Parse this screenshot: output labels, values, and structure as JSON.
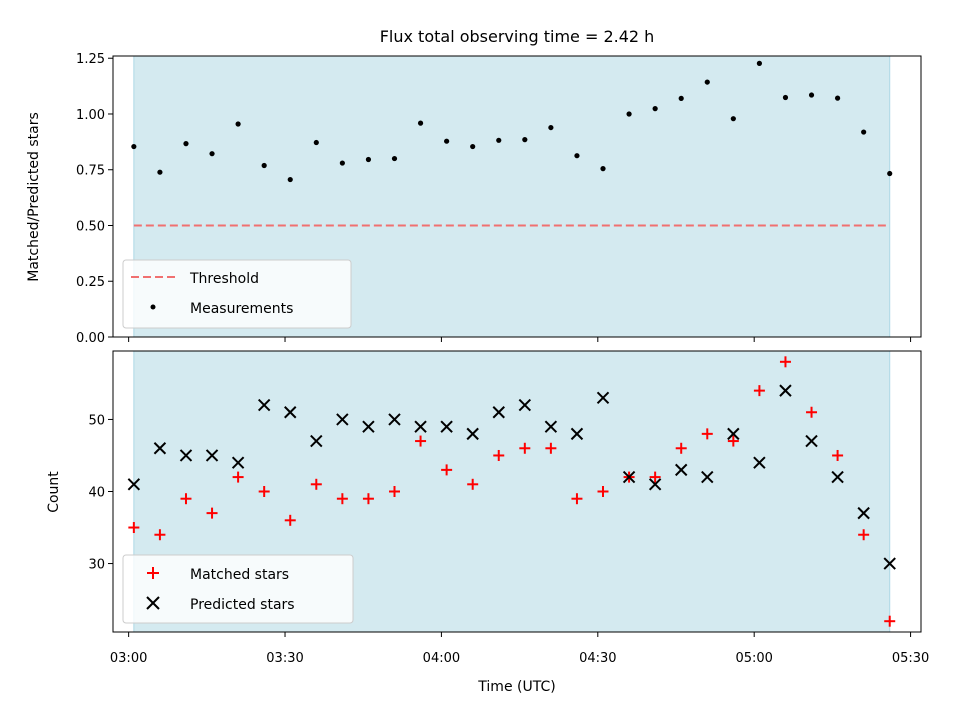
{
  "chart_data": [
    {
      "type": "scatter",
      "title": "Flux total observing time = 2.42 h",
      "xlabel": "",
      "ylabel": "Matched/Predicted stars",
      "ylim": [
        0,
        1.26
      ],
      "yticks": [
        "0.00",
        "0.25",
        "0.50",
        "0.75",
        "1.00",
        "1.25"
      ],
      "ytick_values": [
        0,
        0.25,
        0.5,
        0.75,
        1.0,
        1.25
      ],
      "grid": false,
      "shaded_region": {
        "from": "03:01",
        "to": "05:26",
        "color": "#d4eaf0"
      },
      "threshold": {
        "name": "Threshold",
        "value": 0.5,
        "color": "#f07070"
      },
      "legend": {
        "position": "lower-left",
        "entries": [
          "Threshold",
          "Measurements"
        ]
      },
      "series": [
        {
          "name": "Measurements",
          "marker": "dot",
          "color": "#000000",
          "x": [
            "03:01",
            "03:06",
            "03:11",
            "03:16",
            "03:21",
            "03:26",
            "03:31",
            "03:36",
            "03:41",
            "03:46",
            "03:51",
            "03:56",
            "04:01",
            "04:06",
            "04:11",
            "04:16",
            "04:21",
            "04:26",
            "04:31",
            "04:36",
            "04:41",
            "04:46",
            "04:51",
            "04:56",
            "05:01",
            "05:06",
            "05:11",
            "05:16",
            "05:21",
            "05:26"
          ],
          "y": [
            0.854,
            0.739,
            0.867,
            0.822,
            0.955,
            0.769,
            0.706,
            0.872,
            0.78,
            0.796,
            0.8,
            0.959,
            0.878,
            0.854,
            0.882,
            0.885,
            0.939,
            0.813,
            0.755,
            1.0,
            1.024,
            1.07,
            1.143,
            0.979,
            1.227,
            1.074,
            1.085,
            1.071,
            0.919,
            0.733
          ]
        }
      ]
    },
    {
      "type": "scatter",
      "title": "",
      "xlabel": "Time (UTC)",
      "ylabel": "Count",
      "ylim": [
        20.5,
        59.5
      ],
      "yticks": [
        "30",
        "40",
        "50"
      ],
      "ytick_values": [
        30,
        40,
        50
      ],
      "xlim": [
        "02:57",
        "05:32"
      ],
      "xticks": [
        "03:00",
        "03:30",
        "04:00",
        "04:30",
        "05:00",
        "05:30"
      ],
      "grid": false,
      "shaded_region": {
        "from": "03:01",
        "to": "05:26",
        "color": "#d4eaf0"
      },
      "legend": {
        "position": "lower-left",
        "entries": [
          "Matched stars",
          "Predicted stars"
        ]
      },
      "series": [
        {
          "name": "Matched stars",
          "marker": "plus",
          "color": "#ff0000",
          "x": [
            "03:01",
            "03:06",
            "03:11",
            "03:16",
            "03:21",
            "03:26",
            "03:31",
            "03:36",
            "03:41",
            "03:46",
            "03:51",
            "03:56",
            "04:01",
            "04:06",
            "04:11",
            "04:16",
            "04:21",
            "04:26",
            "04:31",
            "04:36",
            "04:41",
            "04:46",
            "04:51",
            "04:56",
            "05:01",
            "05:06",
            "05:11",
            "05:16",
            "05:21",
            "05:26"
          ],
          "y": [
            35,
            34,
            39,
            37,
            42,
            40,
            36,
            41,
            39,
            39,
            40,
            47,
            43,
            41,
            45,
            46,
            46,
            39,
            40,
            42,
            42,
            46,
            48,
            47,
            54,
            58,
            51,
            45,
            34,
            22
          ]
        },
        {
          "name": "Predicted stars",
          "marker": "x",
          "color": "#000000",
          "x": [
            "03:01",
            "03:06",
            "03:11",
            "03:16",
            "03:21",
            "03:26",
            "03:31",
            "03:36",
            "03:41",
            "03:46",
            "03:51",
            "03:56",
            "04:01",
            "04:06",
            "04:11",
            "04:16",
            "04:21",
            "04:26",
            "04:31",
            "04:36",
            "04:41",
            "04:46",
            "04:51",
            "04:56",
            "05:01",
            "05:06",
            "05:11",
            "05:16",
            "05:21",
            "05:26"
          ],
          "y": [
            41,
            46,
            45,
            45,
            44,
            52,
            51,
            47,
            50,
            49,
            50,
            49,
            49,
            48,
            51,
            52,
            49,
            48,
            53,
            42,
            41,
            43,
            42,
            48,
            44,
            54,
            47,
            42,
            37,
            30
          ]
        }
      ]
    }
  ]
}
